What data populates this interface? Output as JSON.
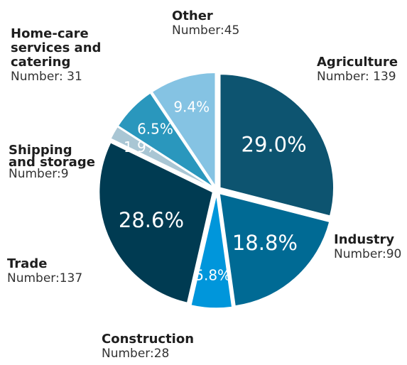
{
  "chart_data": {
    "type": "pie",
    "categories": [
      "Agriculture",
      "Industry",
      "Construction",
      "Trade",
      "Shipping and storage",
      "Home-care services and catering",
      "Other"
    ],
    "values": [
      29.0,
      18.8,
      5.8,
      28.6,
      1.9,
      6.5,
      9.4
    ],
    "value_labels": [
      "29.0%",
      "18.8%",
      "5.8%",
      "28.6%",
      "1.9%",
      "6.5%",
      "9.4%"
    ],
    "numbers": [
      139,
      90,
      28,
      137,
      9,
      31,
      45
    ],
    "number_labels": [
      "Number: 139",
      "Number:90",
      "Number:28",
      "Number:137",
      "Number:9",
      "Number: 31",
      "Number:45"
    ],
    "colors": [
      "#0d5470",
      "#006a94",
      "#0096db",
      "#003b52",
      "#a9c6d4",
      "#2a97bd",
      "#85c3e3"
    ]
  }
}
